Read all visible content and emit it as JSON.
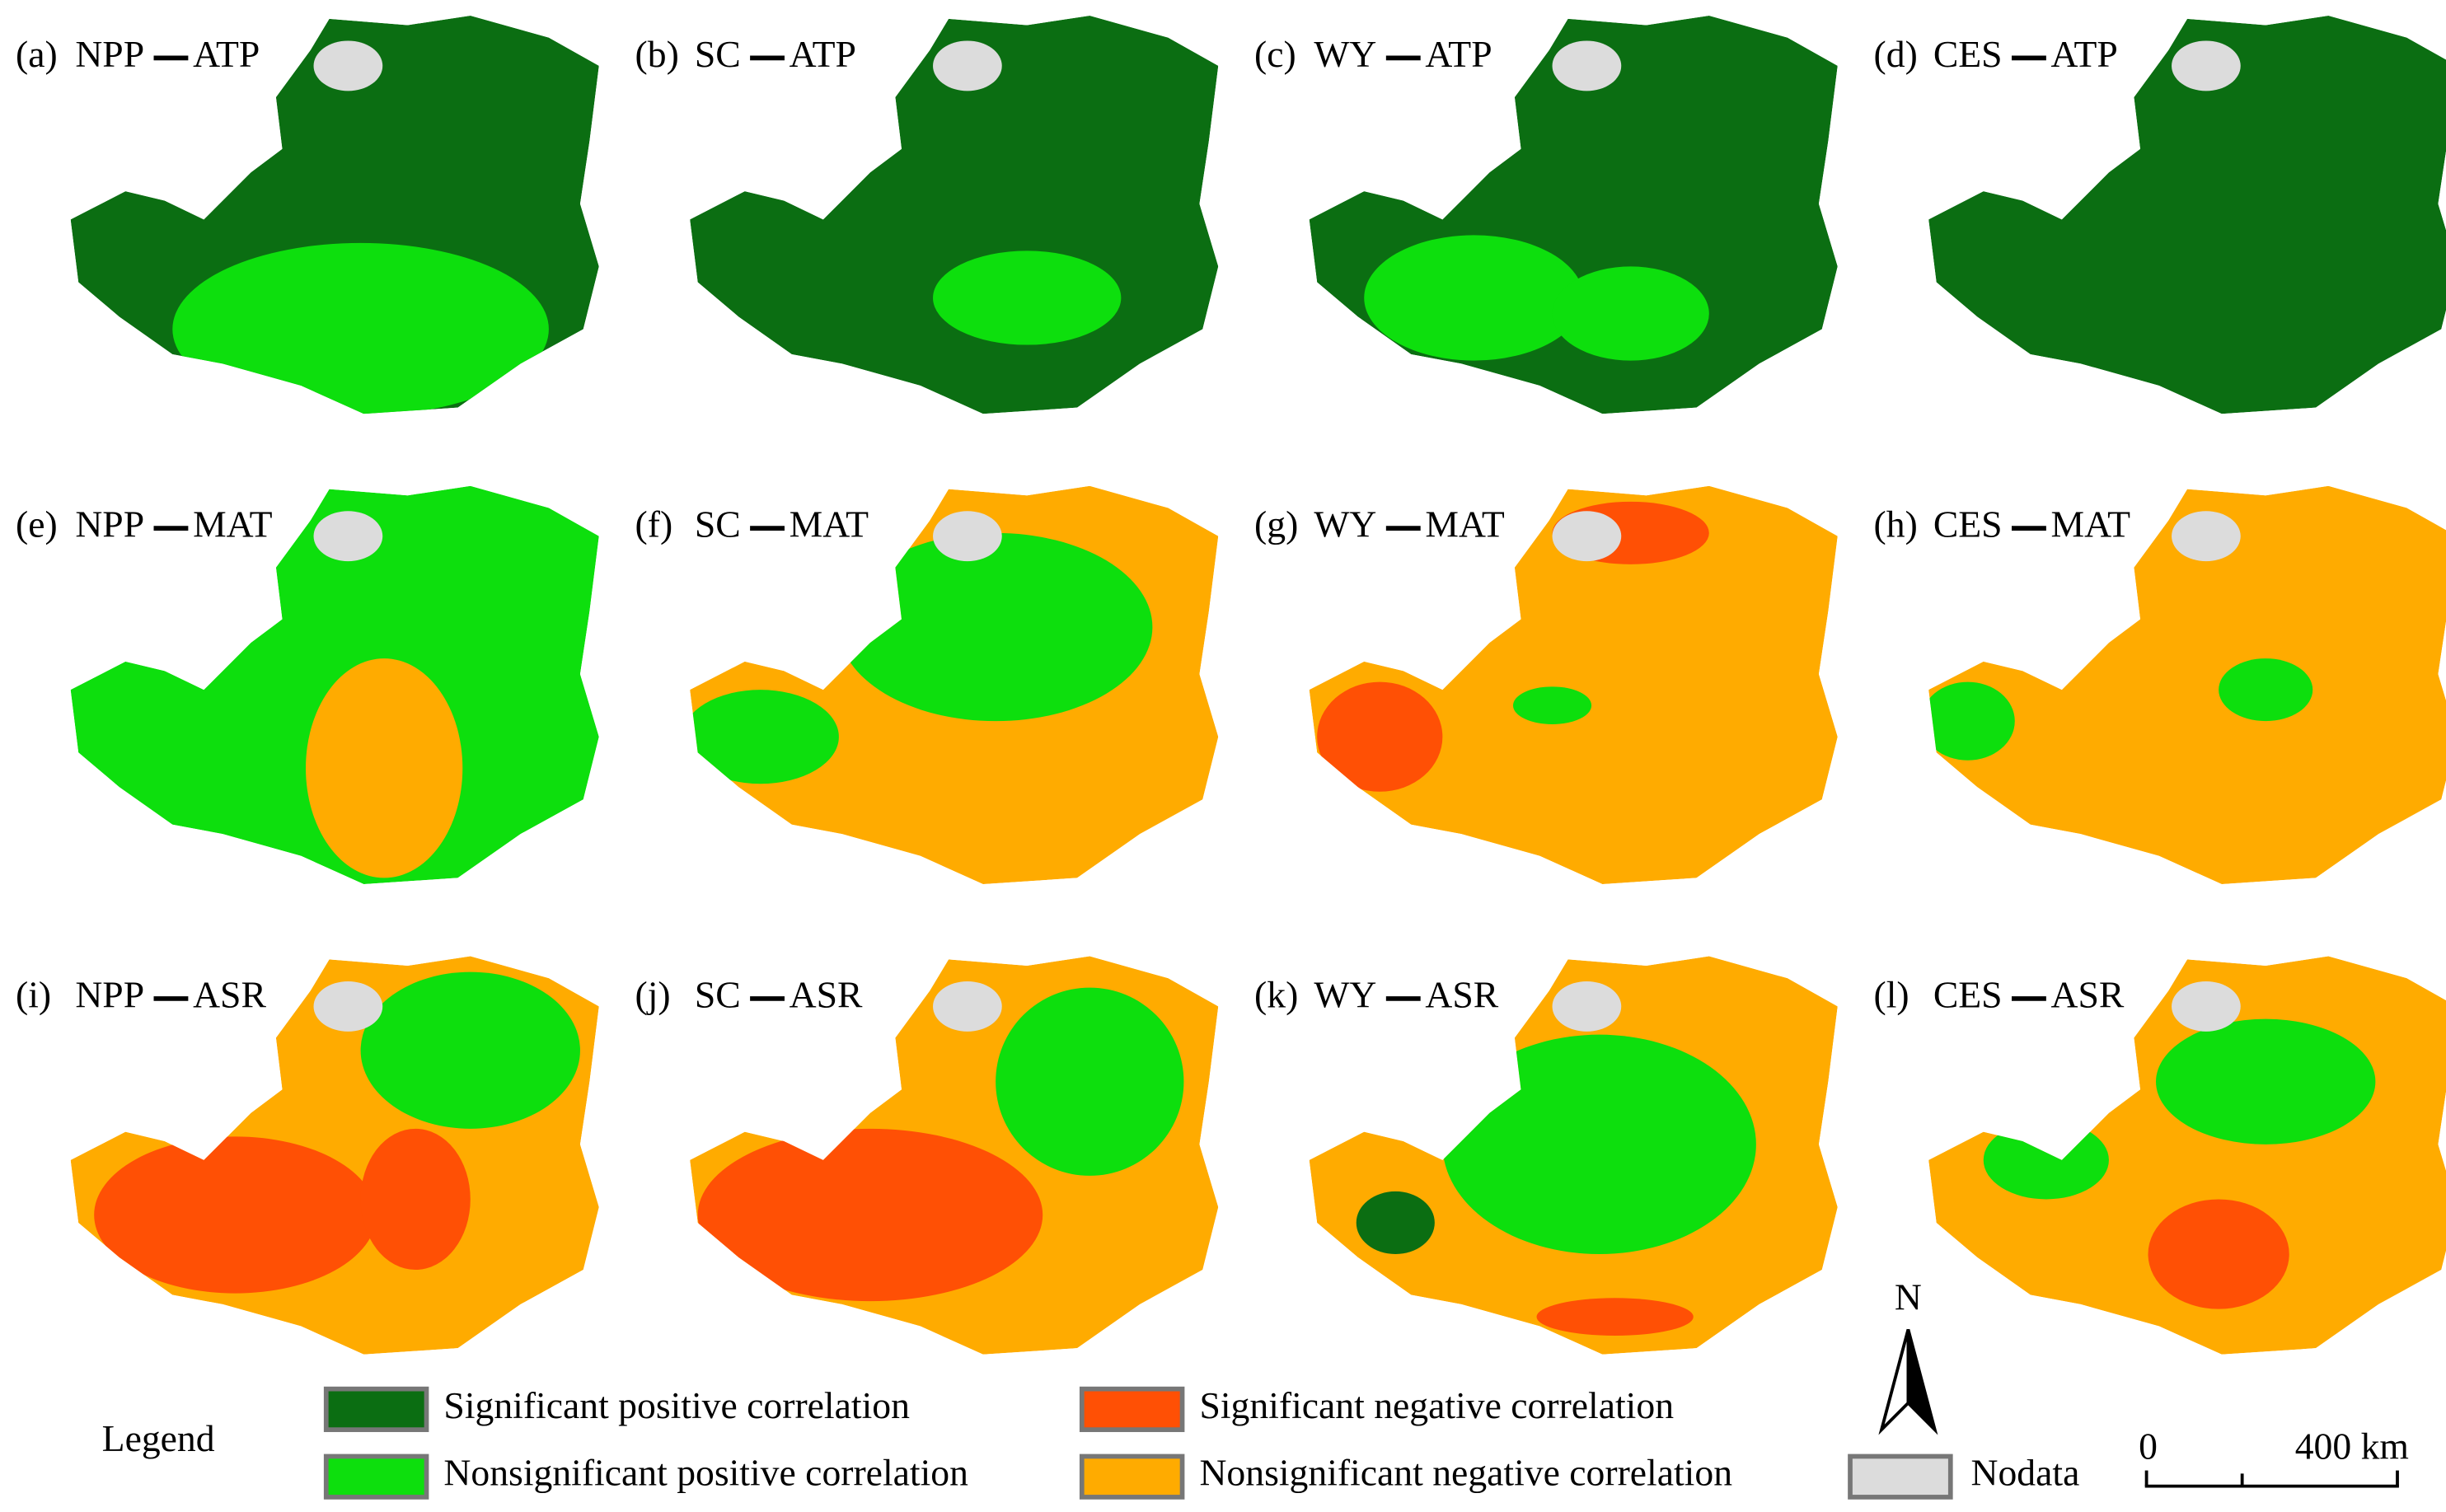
{
  "panels": [
    {
      "id": "(a)",
      "service": "NPP",
      "factor": "ATP"
    },
    {
      "id": "(b)",
      "service": "SC",
      "factor": "ATP"
    },
    {
      "id": "(c)",
      "service": "WY",
      "factor": "ATP"
    },
    {
      "id": "(d)",
      "service": "CES",
      "factor": "ATP"
    },
    {
      "id": "(e)",
      "service": "NPP",
      "factor": "MAT"
    },
    {
      "id": "(f)",
      "service": "SC",
      "factor": "MAT"
    },
    {
      "id": "(g)",
      "service": "WY",
      "factor": "MAT"
    },
    {
      "id": "(h)",
      "service": "CES",
      "factor": "MAT"
    },
    {
      "id": "(i)",
      "service": "NPP",
      "factor": "ASR"
    },
    {
      "id": "(j)",
      "service": "SC",
      "factor": "ASR"
    },
    {
      "id": "(k)",
      "service": "WY",
      "factor": "ASR"
    },
    {
      "id": "(l)",
      "service": "CES",
      "factor": "ASR"
    }
  ],
  "legend": {
    "title": "Legend",
    "items": [
      {
        "label": "Significant positive correlation",
        "color": "#0b6e12"
      },
      {
        "label": "Nonsignificant positive correlation",
        "color": "#0ddf0d"
      },
      {
        "label": "Significant negative correlation",
        "color": "#ff5005"
      },
      {
        "label": "Nonsignificant negative correlation",
        "color": "#ffab00"
      },
      {
        "label": "Nodata",
        "color": "#dcdcdc"
      }
    ]
  },
  "north": "N",
  "scale_bar": {
    "labels": [
      "0",
      "400 km"
    ]
  }
}
